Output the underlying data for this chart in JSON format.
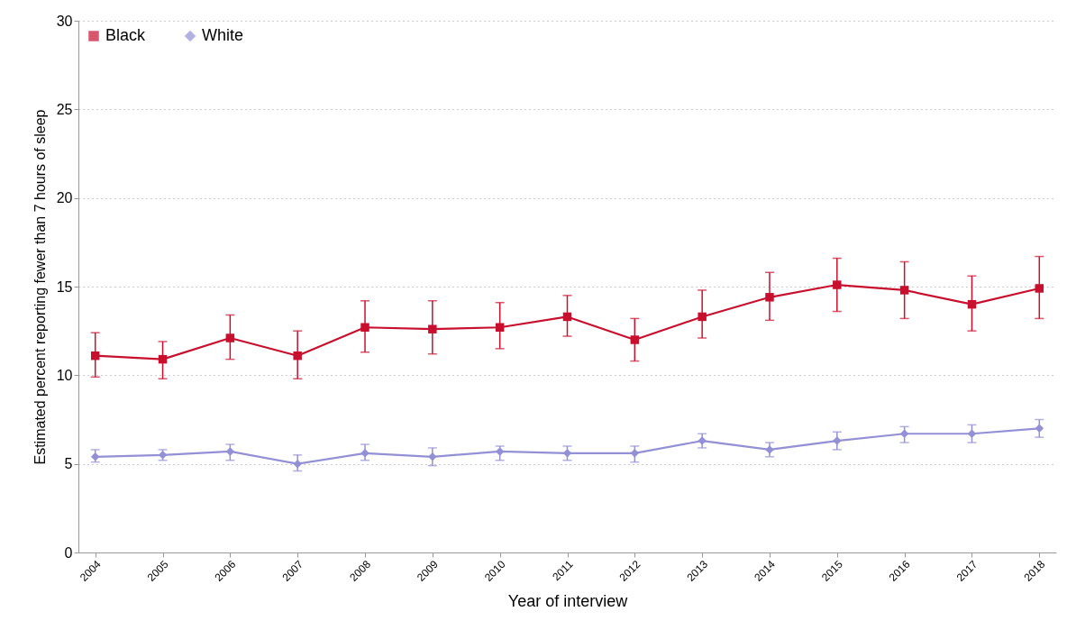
{
  "chart_data": {
    "type": "line",
    "xlabel": "Year of interview",
    "ylabel": "Estimated percent reporting fewer than 7 hours of sleep",
    "categories": [
      "2004",
      "2005",
      "2006",
      "2007",
      "2008",
      "2009",
      "2010",
      "2011",
      "2012",
      "2013",
      "2014",
      "2015",
      "2016",
      "2017",
      "2018"
    ],
    "series": [
      {
        "name": "Black",
        "color": "#c8102e",
        "marker": "square",
        "values": [
          11.1,
          10.9,
          12.1,
          11.1,
          12.7,
          12.6,
          12.7,
          13.3,
          12.0,
          13.3,
          14.4,
          15.1,
          14.8,
          14.0,
          14.9
        ],
        "errors": [
          [
            9.9,
            12.4
          ],
          [
            9.8,
            11.9
          ],
          [
            10.9,
            13.4
          ],
          [
            9.8,
            12.5
          ],
          [
            11.3,
            14.2
          ],
          [
            11.2,
            14.2
          ],
          [
            11.5,
            14.1
          ],
          [
            12.2,
            14.5
          ],
          [
            10.8,
            13.2
          ],
          [
            12.1,
            14.8
          ],
          [
            13.1,
            15.8
          ],
          [
            13.6,
            16.6
          ],
          [
            13.2,
            16.4
          ],
          [
            12.5,
            15.6
          ],
          [
            13.2,
            16.7
          ]
        ]
      },
      {
        "name": "White",
        "color": "#9490d6",
        "marker": "diamond",
        "values": [
          5.4,
          5.5,
          5.7,
          5.0,
          5.6,
          5.4,
          5.7,
          5.6,
          5.6,
          6.3,
          5.8,
          6.3,
          6.7,
          6.7,
          7.0
        ],
        "errors": [
          [
            5.1,
            5.8
          ],
          [
            5.2,
            5.8
          ],
          [
            5.2,
            6.1
          ],
          [
            4.6,
            5.5
          ],
          [
            5.2,
            6.1
          ],
          [
            4.9,
            5.9
          ],
          [
            5.2,
            6.0
          ],
          [
            5.2,
            6.0
          ],
          [
            5.1,
            6.0
          ],
          [
            5.9,
            6.7
          ],
          [
            5.4,
            6.2
          ],
          [
            5.8,
            6.8
          ],
          [
            6.2,
            7.1
          ],
          [
            6.2,
            7.2
          ],
          [
            6.5,
            7.5
          ]
        ]
      }
    ],
    "ylim": [
      0,
      30
    ],
    "yticks": [
      0,
      5,
      10,
      15,
      20,
      25,
      30
    ],
    "grid": "y",
    "legend": "top left",
    "line_style": "solid"
  }
}
